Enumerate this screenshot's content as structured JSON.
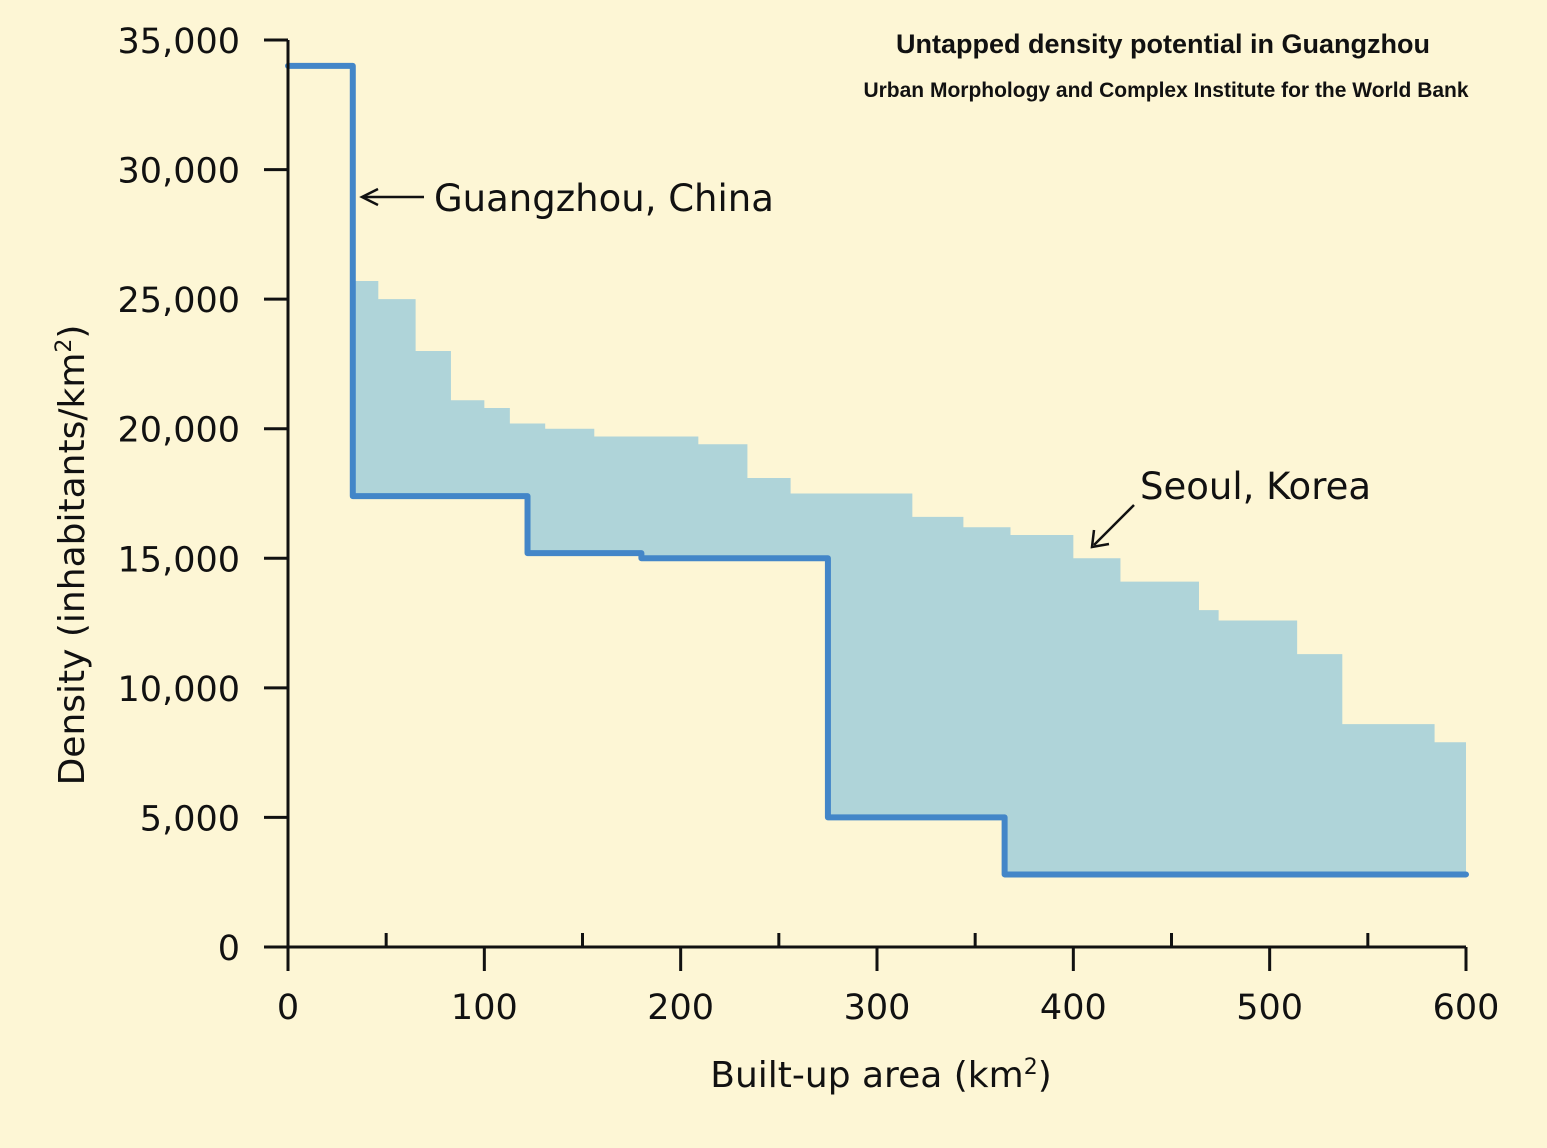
{
  "chart_data": {
    "type": "line",
    "title": "Untapped density potential in Guangzhou",
    "subtitle": "Urban Morphology and Complex Institute for the World Bank",
    "xlabel": "Built-up area (km",
    "xlabel_sup": "2",
    "xlabel_end": ")",
    "ylabel": "Density (inhabitants/km",
    "ylabel_sup": "2",
    "ylabel_end": ")",
    "xlim": [
      0,
      600
    ],
    "ylim": [
      0,
      35000
    ],
    "x_ticks": [
      0,
      100,
      200,
      300,
      400,
      500,
      600
    ],
    "x_tick_labels": [
      "0",
      "100",
      "200",
      "300",
      "400",
      "500",
      "600"
    ],
    "x_minor_ticks": [
      50,
      150,
      250,
      350,
      450,
      550
    ],
    "y_ticks": [
      0,
      5000,
      10000,
      15000,
      20000,
      25000,
      30000,
      35000
    ],
    "y_tick_labels": [
      "0",
      "5,000",
      "10,000",
      "15,000",
      "20,000",
      "25,000",
      "30,000",
      "35,000"
    ],
    "grid": false,
    "series": [
      {
        "name": "Guangzhou, China",
        "kind": "step-line",
        "color": "#4386c8",
        "x": [
          0,
          33,
          33,
          122,
          122,
          180,
          180,
          275,
          275,
          365,
          365,
          600
        ],
        "y": [
          34000,
          34000,
          17400,
          17400,
          15200,
          15200,
          15000,
          15000,
          5000,
          5000,
          2800,
          2800
        ]
      },
      {
        "name": "Seoul, Korea",
        "kind": "step-area",
        "color": "#afd4d9",
        "x": [
          33,
          46,
          46,
          65,
          65,
          83,
          83,
          100,
          100,
          113,
          113,
          131,
          131,
          156,
          156,
          209,
          209,
          234,
          234,
          256,
          256,
          318,
          318,
          344,
          344,
          368,
          368,
          400,
          400,
          424,
          424,
          464,
          464,
          474,
          474,
          514,
          514,
          537,
          537,
          584,
          584,
          600
        ],
        "y": [
          25700,
          25700,
          25000,
          25000,
          23000,
          23000,
          21100,
          21100,
          20800,
          20800,
          20200,
          20200,
          20000,
          20000,
          19700,
          19700,
          19400,
          19400,
          18100,
          18100,
          17500,
          17500,
          16600,
          16600,
          16200,
          16200,
          15900,
          15900,
          15000,
          15000,
          14100,
          14100,
          13000,
          13000,
          12600,
          12600,
          11300,
          11300,
          8600,
          8600,
          7900,
          7900
        ]
      }
    ],
    "annotations": [
      {
        "text": "Guangzhou, China"
      },
      {
        "text": "Seoul, Korea"
      }
    ]
  }
}
